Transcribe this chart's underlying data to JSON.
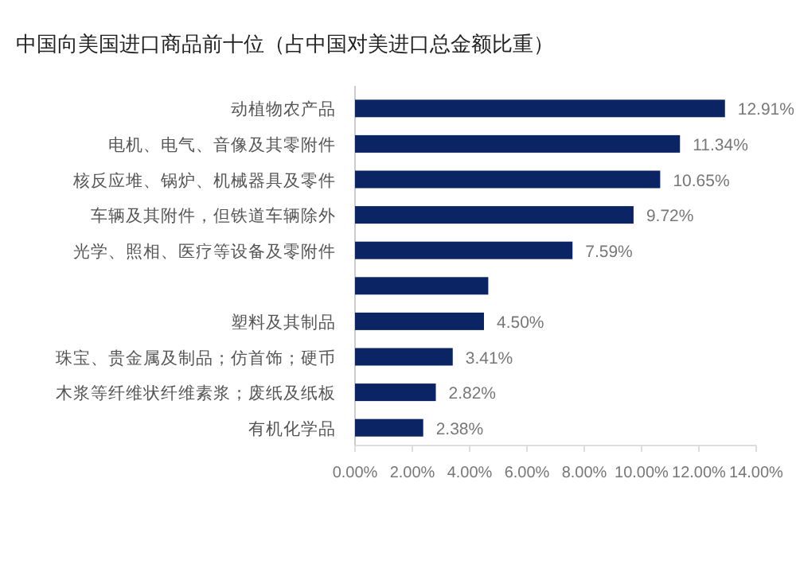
{
  "chart_data": {
    "type": "bar",
    "orientation": "horizontal",
    "title": "中国向美国进口商品前十位（占中国对美进口总金额比重）",
    "categories": [
      "动植物农产品",
      "电机、电气、音像及其零附件",
      "核反应堆、锅炉、机械器具及零件",
      "车辆及其附件，但铁道车辆除外",
      "光学、照相、医疗等设备及零附件",
      null,
      "塑料及其制品",
      "珠宝、贵金属及制品；仿首饰；硬币",
      "木浆等纤维状纤维素浆；废纸及纸板",
      "有机化学品"
    ],
    "values": [
      12.91,
      11.34,
      10.65,
      9.72,
      7.59,
      4.65,
      4.5,
      3.41,
      2.82,
      2.38
    ],
    "value_labels": [
      "12.91%",
      "11.34%",
      "10.65%",
      "9.72%",
      "7.59%",
      null,
      "4.50%",
      "3.41%",
      "2.82%",
      "2.38%"
    ],
    "color": "#0b2463",
    "xlim": [
      0,
      14
    ],
    "xticks": [
      {
        "value": 0,
        "label": "0.00%"
      },
      {
        "value": 2,
        "label": "2.00%"
      },
      {
        "value": 4,
        "label": "4.00%"
      },
      {
        "value": 6,
        "label": "6.00%"
      },
      {
        "value": 8,
        "label": "8.00%"
      },
      {
        "value": 10,
        "label": "10.00%"
      },
      {
        "value": 12,
        "label": "12.00%"
      },
      {
        "value": 14,
        "label": "14.00%"
      }
    ],
    "grid": false
  }
}
